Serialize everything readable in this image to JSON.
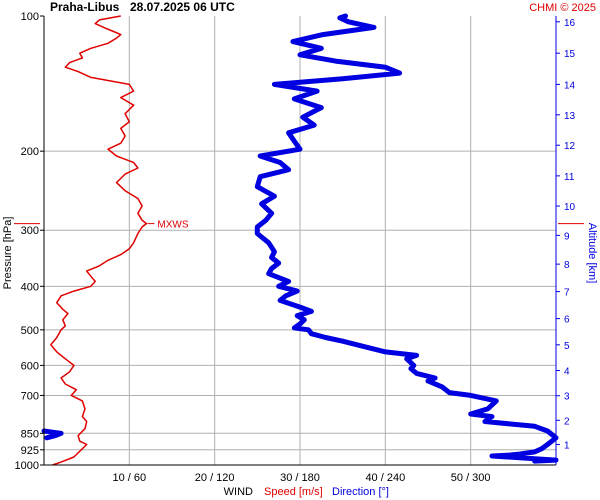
{
  "chart_data": {
    "type": "line",
    "title": "Praha-Libus",
    "subtitle": "28.07.2025 06 UTC",
    "credit": "CHMI © 2025",
    "ylabel": "Pressure [hPa]",
    "y2label": "Altitude [km]",
    "xlabel_prefix": "WIND",
    "xlabel_speed": "Speed [m/s]",
    "xlabel_direction": "Direction [°]",
    "y_scale": "log",
    "ylim": [
      1000,
      100
    ],
    "pressure_ticks": [
      100,
      200,
      300,
      400,
      500,
      600,
      700,
      850,
      925,
      1000
    ],
    "altitude_ticks": [
      1,
      2,
      3,
      4,
      5,
      6,
      7,
      8,
      9,
      10,
      11,
      12,
      13,
      14,
      15,
      16
    ],
    "altitude_tick_pressure": [
      900,
      795,
      701,
      616,
      540,
      472,
      411,
      357,
      308,
      265,
      227,
      194,
      166,
      142,
      121,
      103
    ],
    "x_ticks": [
      "10 / 60",
      "20 / 120",
      "30 / 180",
      "40 / 240",
      "50 / 300"
    ],
    "speed_range": [
      0,
      60
    ],
    "direction_range": [
      0,
      360
    ],
    "grid": true,
    "annotation": {
      "text": "MXWS",
      "pressure": 290
    },
    "colors": {
      "speed": "#e00000",
      "direction": "#0000e0",
      "axis_text": "#000000",
      "credit": "#e00000"
    },
    "series": [
      {
        "name": "Speed [m/s]",
        "points": [
          [
            1000,
            1.0
          ],
          [
            985,
            2.0
          ],
          [
            960,
            3.5
          ],
          [
            940,
            4.0
          ],
          [
            920,
            4.5
          ],
          [
            900,
            5.0
          ],
          [
            885,
            4.2
          ],
          [
            860,
            4.0
          ],
          [
            830,
            4.8
          ],
          [
            800,
            5.0
          ],
          [
            780,
            4.5
          ],
          [
            750,
            4.8
          ],
          [
            720,
            4.5
          ],
          [
            700,
            3.2
          ],
          [
            680,
            3.8
          ],
          [
            660,
            2.5
          ],
          [
            640,
            2.0
          ],
          [
            620,
            3.0
          ],
          [
            600,
            3.5
          ],
          [
            580,
            2.5
          ],
          [
            560,
            1.5
          ],
          [
            540,
            0.8
          ],
          [
            520,
            1.5
          ],
          [
            500,
            2.0
          ],
          [
            490,
            2.5
          ],
          [
            475,
            2.2
          ],
          [
            460,
            2.8
          ],
          [
            450,
            2.2
          ],
          [
            435,
            1.5
          ],
          [
            420,
            2.0
          ],
          [
            410,
            3.5
          ],
          [
            400,
            5.5
          ],
          [
            390,
            6.0
          ],
          [
            380,
            5.5
          ],
          [
            370,
            5.0
          ],
          [
            360,
            6.5
          ],
          [
            350,
            7.5
          ],
          [
            340,
            9.0
          ],
          [
            330,
            10.0
          ],
          [
            320,
            10.5
          ],
          [
            305,
            11.0
          ],
          [
            295,
            11.5
          ],
          [
            290,
            12.0
          ],
          [
            285,
            11.5
          ],
          [
            275,
            11.0
          ],
          [
            265,
            11.5
          ],
          [
            255,
            11.0
          ],
          [
            245,
            9.5
          ],
          [
            235,
            8.5
          ],
          [
            225,
            9.5
          ],
          [
            218,
            11.0
          ],
          [
            212,
            10.5
          ],
          [
            205,
            8.5
          ],
          [
            198,
            7.5
          ],
          [
            192,
            9.0
          ],
          [
            185,
            9.5
          ],
          [
            178,
            9.0
          ],
          [
            172,
            10.0
          ],
          [
            165,
            9.5
          ],
          [
            158,
            10.5
          ],
          [
            152,
            9.0
          ],
          [
            147,
            10.5
          ],
          [
            142,
            10.0
          ],
          [
            137,
            5.5
          ],
          [
            133,
            4.0
          ],
          [
            130,
            2.5
          ],
          [
            127,
            3.0
          ],
          [
            124,
            4.5
          ],
          [
            121,
            4.2
          ],
          [
            118,
            5.5
          ],
          [
            115,
            7.5
          ],
          [
            112,
            8.5
          ],
          [
            110,
            9.0
          ],
          [
            108,
            8.0
          ],
          [
            106,
            7.0
          ],
          [
            104,
            6.0
          ],
          [
            102,
            6.5
          ],
          [
            100,
            9.0
          ]
        ]
      },
      {
        "name": "Direction [°]",
        "points": [
          [
            980,
            345
          ],
          [
            975,
            360
          ],
          [
            955,
            315
          ],
          [
            950,
            328
          ],
          [
            945,
            335
          ],
          [
            935,
            345
          ],
          [
            920,
            350
          ],
          [
            900,
            354
          ],
          [
            870,
            360
          ],
          [
            840,
            354
          ],
          [
            820,
            345
          ],
          [
            800,
            310
          ],
          [
            780,
            315
          ],
          [
            770,
            300
          ],
          [
            750,
            312
          ],
          [
            720,
            318
          ],
          [
            700,
            300
          ],
          [
            690,
            285
          ],
          [
            670,
            280
          ],
          [
            650,
            270
          ],
          [
            640,
            275
          ],
          [
            625,
            262
          ],
          [
            610,
            258
          ],
          [
            600,
            260
          ],
          [
            580,
            255
          ],
          [
            570,
            262
          ],
          [
            560,
            240
          ],
          [
            545,
            225
          ],
          [
            530,
            210
          ],
          [
            520,
            198
          ],
          [
            510,
            188
          ],
          [
            500,
            186
          ],
          [
            495,
            176
          ],
          [
            485,
            180
          ],
          [
            475,
            183
          ],
          [
            465,
            178
          ],
          [
            455,
            188
          ],
          [
            445,
            180
          ],
          [
            430,
            166
          ],
          [
            420,
            170
          ],
          [
            410,
            178
          ],
          [
            400,
            165
          ],
          [
            390,
            172
          ],
          [
            375,
            158
          ],
          [
            365,
            160
          ],
          [
            355,
            165
          ],
          [
            345,
            160
          ],
          [
            335,
            162
          ],
          [
            320,
            158
          ],
          [
            305,
            150
          ],
          [
            295,
            150
          ],
          [
            285,
            156
          ],
          [
            275,
            160
          ],
          [
            262,
            153
          ],
          [
            252,
            162
          ],
          [
            240,
            150
          ],
          [
            228,
            152
          ],
          [
            220,
            172
          ],
          [
            212,
            166
          ],
          [
            205,
            152
          ],
          [
            198,
            180
          ],
          [
            190,
            176
          ],
          [
            182,
            172
          ],
          [
            175,
            190
          ],
          [
            168,
            182
          ],
          [
            160,
            195
          ],
          [
            153,
            176
          ],
          [
            147,
            192
          ],
          [
            142,
            162
          ],
          [
            138,
            210
          ],
          [
            134,
            250
          ],
          [
            130,
            240
          ],
          [
            126,
            205
          ],
          [
            122,
            180
          ],
          [
            118,
            195
          ],
          [
            114,
            175
          ],
          [
            110,
            196
          ],
          [
            106,
            232
          ],
          [
            103,
            214
          ],
          [
            101,
            208
          ],
          [
            100,
            212
          ]
        ]
      }
    ]
  }
}
